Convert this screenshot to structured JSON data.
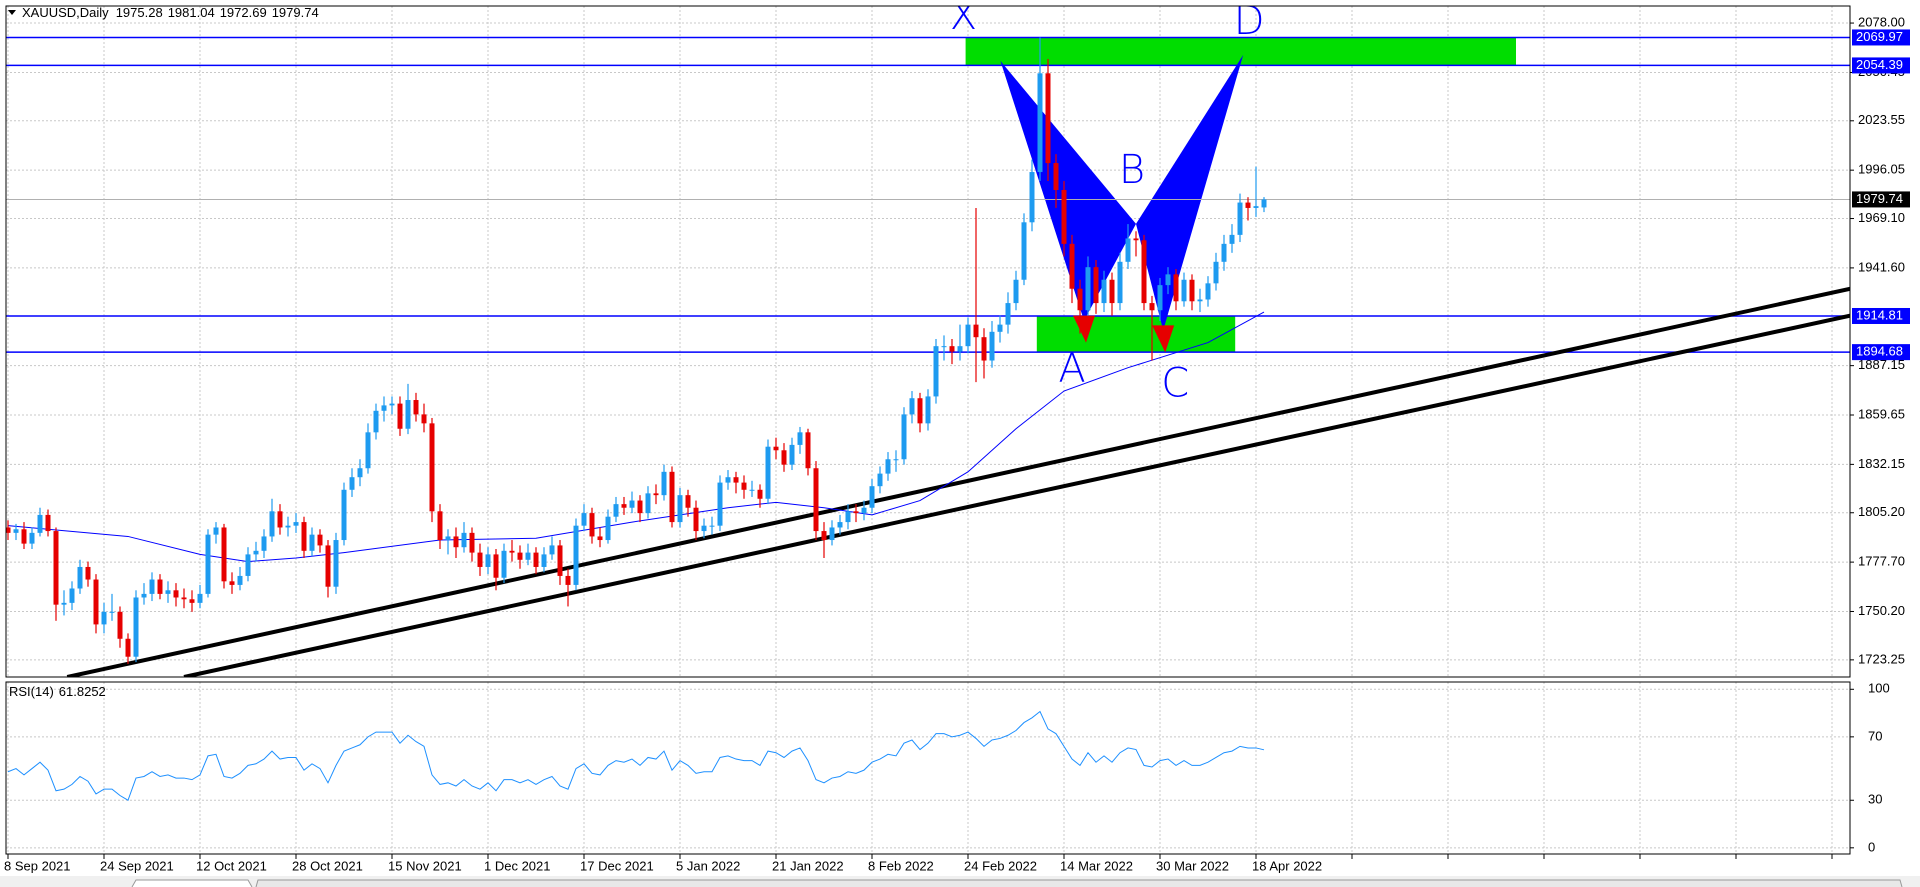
{
  "chart_data": {
    "type": "candlestick",
    "title": "XAUUSD,Daily",
    "categories": [
      "8 Sep 2021",
      null,
      null,
      null,
      null,
      null,
      null,
      null,
      null,
      null,
      null,
      null,
      "24 Sep 2021",
      null,
      null,
      null,
      null,
      null,
      null,
      null,
      null,
      null,
      null,
      null,
      "12 Oct 2021",
      null,
      null,
      null,
      null,
      null,
      null,
      null,
      null,
      null,
      null,
      null,
      "28 Oct 2021",
      null,
      null,
      null,
      null,
      null,
      null,
      null,
      null,
      null,
      null,
      null,
      "15 Nov 2021",
      null,
      null,
      null,
      null,
      null,
      null,
      null,
      null,
      null,
      null,
      null,
      "1 Dec 2021",
      null,
      null,
      null,
      null,
      null,
      null,
      null,
      null,
      null,
      null,
      null,
      "17 Dec 2021",
      null,
      null,
      null,
      null,
      null,
      null,
      null,
      null,
      null,
      null,
      null,
      "5 Jan 2022",
      null,
      null,
      null,
      null,
      null,
      null,
      null,
      null,
      null,
      null,
      null,
      "21 Jan 2022",
      null,
      null,
      null,
      null,
      null,
      null,
      null,
      null,
      null,
      null,
      null,
      "8 Feb 2022",
      null,
      null,
      null,
      null,
      null,
      null,
      null,
      null,
      null,
      null,
      null,
      "24 Feb 2022",
      null,
      null,
      null,
      null,
      null,
      null,
      null,
      null,
      null,
      null,
      null,
      "14 Mar 2022",
      null,
      null,
      null,
      null,
      null,
      null,
      null,
      null,
      null,
      null,
      null,
      "30 Mar 2022",
      null,
      null,
      null,
      null,
      null,
      null,
      null,
      null,
      null,
      null,
      null,
      "18 Apr 2022",
      null
    ],
    "ohlc": [
      [
        1797,
        1801,
        1790,
        1794
      ],
      [
        1794,
        1799,
        1790,
        1796
      ],
      [
        1796,
        1800,
        1785,
        1788
      ],
      [
        1788,
        1797,
        1785,
        1794
      ],
      [
        1794,
        1808,
        1792,
        1804
      ],
      [
        1804,
        1807,
        1792,
        1795
      ],
      [
        1795,
        1797,
        1745,
        1754
      ],
      [
        1754,
        1762,
        1748,
        1755
      ],
      [
        1755,
        1767,
        1751,
        1763
      ],
      [
        1763,
        1779,
        1760,
        1775
      ],
      [
        1775,
        1778,
        1764,
        1768
      ],
      [
        1768,
        1771,
        1738,
        1743
      ],
      [
        1743,
        1755,
        1738,
        1750
      ],
      [
        1750,
        1760,
        1745,
        1750
      ],
      [
        1750,
        1753,
        1730,
        1735
      ],
      [
        1735,
        1738,
        1721,
        1725
      ],
      [
        1725,
        1762,
        1722,
        1758
      ],
      [
        1758,
        1766,
        1754,
        1760
      ],
      [
        1760,
        1772,
        1756,
        1768
      ],
      [
        1768,
        1771,
        1757,
        1760
      ],
      [
        1760,
        1767,
        1755,
        1762
      ],
      [
        1762,
        1766,
        1753,
        1758
      ],
      [
        1758,
        1763,
        1752,
        1757
      ],
      [
        1757,
        1762,
        1750,
        1755
      ],
      [
        1755,
        1765,
        1752,
        1760
      ],
      [
        1760,
        1796,
        1758,
        1793
      ],
      [
        1793,
        1800,
        1788,
        1797
      ],
      [
        1797,
        1799,
        1763,
        1767
      ],
      [
        1767,
        1772,
        1760,
        1765
      ],
      [
        1765,
        1775,
        1762,
        1770
      ],
      [
        1770,
        1786,
        1767,
        1782
      ],
      [
        1782,
        1789,
        1778,
        1784
      ],
      [
        1784,
        1796,
        1780,
        1792
      ],
      [
        1792,
        1813,
        1789,
        1806
      ],
      [
        1806,
        1810,
        1793,
        1797
      ],
      [
        1797,
        1803,
        1792,
        1798
      ],
      [
        1798,
        1805,
        1794,
        1800
      ],
      [
        1800,
        1803,
        1780,
        1784
      ],
      [
        1784,
        1797,
        1781,
        1793
      ],
      [
        1793,
        1796,
        1783,
        1787
      ],
      [
        1787,
        1790,
        1758,
        1764
      ],
      [
        1764,
        1794,
        1760,
        1790
      ],
      [
        1790,
        1822,
        1787,
        1818
      ],
      [
        1818,
        1830,
        1814,
        1825
      ],
      [
        1825,
        1835,
        1820,
        1830
      ],
      [
        1830,
        1855,
        1827,
        1850
      ],
      [
        1850,
        1866,
        1846,
        1862
      ],
      [
        1862,
        1870,
        1856,
        1865
      ],
      [
        1865,
        1870,
        1860,
        1866
      ],
      [
        1866,
        1870,
        1848,
        1852
      ],
      [
        1852,
        1877,
        1849,
        1868
      ],
      [
        1868,
        1872,
        1856,
        1860
      ],
      [
        1860,
        1866,
        1850,
        1855
      ],
      [
        1855,
        1858,
        1800,
        1806
      ],
      [
        1806,
        1810,
        1785,
        1790
      ],
      [
        1790,
        1796,
        1782,
        1792
      ],
      [
        1792,
        1797,
        1780,
        1786
      ],
      [
        1786,
        1800,
        1783,
        1794
      ],
      [
        1794,
        1797,
        1778,
        1783
      ],
      [
        1783,
        1788,
        1770,
        1775
      ],
      [
        1775,
        1786,
        1771,
        1782
      ],
      [
        1782,
        1785,
        1762,
        1769
      ],
      [
        1769,
        1788,
        1766,
        1784
      ],
      [
        1784,
        1790,
        1778,
        1783
      ],
      [
        1783,
        1787,
        1774,
        1779
      ],
      [
        1779,
        1788,
        1776,
        1783
      ],
      [
        1783,
        1786,
        1771,
        1775
      ],
      [
        1775,
        1786,
        1772,
        1782
      ],
      [
        1782,
        1792,
        1779,
        1787
      ],
      [
        1787,
        1790,
        1765,
        1770
      ],
      [
        1770,
        1774,
        1753,
        1765
      ],
      [
        1765,
        1802,
        1762,
        1798
      ],
      [
        1798,
        1810,
        1795,
        1805
      ],
      [
        1805,
        1808,
        1788,
        1792
      ],
      [
        1792,
        1797,
        1786,
        1790
      ],
      [
        1790,
        1807,
        1788,
        1803
      ],
      [
        1803,
        1814,
        1800,
        1810
      ],
      [
        1810,
        1814,
        1804,
        1808
      ],
      [
        1808,
        1817,
        1805,
        1812
      ],
      [
        1812,
        1815,
        1800,
        1805
      ],
      [
        1805,
        1820,
        1802,
        1816
      ],
      [
        1816,
        1821,
        1810,
        1815
      ],
      [
        1815,
        1832,
        1812,
        1828
      ],
      [
        1828,
        1831,
        1797,
        1800
      ],
      [
        1800,
        1819,
        1797,
        1815
      ],
      [
        1815,
        1818,
        1803,
        1808
      ],
      [
        1808,
        1812,
        1790,
        1795
      ],
      [
        1795,
        1802,
        1791,
        1798
      ],
      [
        1798,
        1803,
        1793,
        1798
      ],
      [
        1798,
        1826,
        1795,
        1822
      ],
      [
        1822,
        1829,
        1818,
        1825
      ],
      [
        1825,
        1828,
        1816,
        1822
      ],
      [
        1822,
        1826,
        1813,
        1818
      ],
      [
        1818,
        1823,
        1814,
        1818
      ],
      [
        1818,
        1821,
        1808,
        1813
      ],
      [
        1813,
        1846,
        1810,
        1842
      ],
      [
        1842,
        1847,
        1835,
        1840
      ],
      [
        1840,
        1844,
        1828,
        1832
      ],
      [
        1832,
        1847,
        1829,
        1843
      ],
      [
        1843,
        1853,
        1838,
        1850
      ],
      [
        1850,
        1852,
        1826,
        1830
      ],
      [
        1830,
        1834,
        1790,
        1795
      ],
      [
        1795,
        1800,
        1780,
        1790
      ],
      [
        1790,
        1801,
        1787,
        1797
      ],
      [
        1797,
        1804,
        1793,
        1800
      ],
      [
        1800,
        1810,
        1796,
        1806
      ],
      [
        1806,
        1810,
        1800,
        1805
      ],
      [
        1805,
        1812,
        1801,
        1808
      ],
      [
        1808,
        1824,
        1805,
        1820
      ],
      [
        1820,
        1831,
        1816,
        1827
      ],
      [
        1827,
        1839,
        1823,
        1835
      ],
      [
        1835,
        1840,
        1828,
        1835
      ],
      [
        1835,
        1864,
        1832,
        1860
      ],
      [
        1860,
        1873,
        1855,
        1869
      ],
      [
        1869,
        1872,
        1850,
        1855
      ],
      [
        1855,
        1874,
        1851,
        1870
      ],
      [
        1870,
        1902,
        1866,
        1898
      ],
      [
        1898,
        1904,
        1890,
        1898
      ],
      [
        1898,
        1902,
        1888,
        1895
      ],
      [
        1895,
        1910,
        1890,
        1898
      ],
      [
        1898,
        1914,
        1894,
        1910
      ],
      [
        1910,
        1975,
        1878,
        1903
      ],
      [
        1903,
        1908,
        1880,
        1890
      ],
      [
        1890,
        1912,
        1886,
        1906
      ],
      [
        1906,
        1915,
        1900,
        1910
      ],
      [
        1910,
        1928,
        1905,
        1922
      ],
      [
        1922,
        1940,
        1918,
        1935
      ],
      [
        1935,
        1972,
        1932,
        1967
      ],
      [
        1967,
        2002,
        1962,
        1995
      ],
      [
        1995,
        2070,
        1990,
        2050
      ],
      [
        2050,
        2058,
        1990,
        2000
      ],
      [
        2000,
        2005,
        1975,
        1985
      ],
      [
        1985,
        1990,
        1948,
        1955
      ],
      [
        1955,
        1960,
        1922,
        1930
      ],
      [
        1930,
        1935,
        1905,
        1918
      ],
      [
        1918,
        1948,
        1912,
        1942
      ],
      [
        1942,
        1946,
        1916,
        1922
      ],
      [
        1922,
        1940,
        1917,
        1935
      ],
      [
        1935,
        1939,
        1915,
        1922
      ],
      [
        1922,
        1950,
        1918,
        1945
      ],
      [
        1945,
        1966,
        1941,
        1958
      ],
      [
        1958,
        1962,
        1948,
        1957
      ],
      [
        1957,
        1960,
        1918,
        1922
      ],
      [
        1922,
        1926,
        1890,
        1918
      ],
      [
        1918,
        1936,
        1912,
        1932
      ],
      [
        1932,
        1942,
        1927,
        1938
      ],
      [
        1938,
        1941,
        1918,
        1923
      ],
      [
        1923,
        1939,
        1920,
        1935
      ],
      [
        1935,
        1938,
        1918,
        1923
      ],
      [
        1923,
        1930,
        1917,
        1924
      ],
      [
        1924,
        1937,
        1920,
        1933
      ],
      [
        1933,
        1950,
        1929,
        1945
      ],
      [
        1945,
        1960,
        1940,
        1955
      ],
      [
        1955,
        1966,
        1950,
        1960
      ],
      [
        1960,
        1983,
        1956,
        1978
      ],
      [
        1978,
        1981,
        1968,
        1975
      ],
      [
        1975,
        1998,
        1970,
        1976
      ],
      [
        1975.28,
        1981.04,
        1972.69,
        1979.74
      ]
    ],
    "up_color": "#1e9bf0",
    "down_color": "#e60000",
    "ylim": [
      1713.7,
      2087.5
    ],
    "yticks": [
      {
        "value": 2078,
        "label": "2078.00"
      },
      2050.45,
      2023.55,
      1996.05,
      {
        "value": 1969.1,
        "label": "1969.10"
      },
      {
        "value": 1941.6,
        "label": "1941.60"
      },
      1887.15,
      1859.65,
      1832.15,
      {
        "value": 1805.2,
        "label": "1805.20"
      },
      {
        "value": 1777.7,
        "label": "1777.70"
      },
      {
        "value": 1750.2,
        "label": "1750.20"
      },
      1723.25
    ],
    "grid": true,
    "levels": [
      2069.97,
      2054.39,
      1914.81,
      1894.68
    ],
    "level_color": "#0000ff",
    "ma": {
      "color": "#0000ff",
      "x": [
        0,
        15,
        24,
        30,
        36,
        42,
        54,
        66,
        78,
        90,
        96,
        102,
        108,
        114,
        120,
        126,
        132,
        140,
        150,
        157
      ],
      "values": [
        1798,
        1792,
        1782,
        1778,
        1780,
        1783,
        1790,
        1791,
        1800,
        1808,
        1811,
        1808,
        1804,
        1812,
        1828,
        1852,
        1873,
        1886,
        1900,
        1917
      ]
    },
    "zones": [
      {
        "x": [
          119.7,
          188.5
        ],
        "y": [
          2054.39,
          2069.97
        ]
      },
      {
        "x": [
          128.6,
          153.4
        ],
        "y": [
          1894.68,
          1914.81
        ]
      }
    ],
    "zone_color": "#00dd00",
    "trendlines": [
      {
        "x": [
          7.4,
          230.9
        ],
        "y": [
          1713.7,
          1930.6
        ]
      },
      {
        "x": [
          22.0,
          230.9
        ],
        "y": [
          1713.7,
          1915.6
        ]
      }
    ],
    "pattern": {
      "color": "#0000ff",
      "labels": [
        "X",
        "A",
        "B",
        "C",
        "D"
      ],
      "x": [
        124.05,
        134.5,
        141.0,
        144.4,
        154.4
      ],
      "y": [
        2056.9,
        1912.2,
        1966.1,
        1906.8,
        2060.3
      ]
    },
    "rsi": {
      "title": "RSI(14)",
      "color": "#1e90ff",
      "ylim": [
        -3.9,
        104.6
      ],
      "yticks": [
        100,
        70,
        30,
        0
      ],
      "values": [
        48,
        50,
        46,
        50,
        54,
        49,
        36,
        37,
        40,
        45,
        42,
        34,
        37,
        37,
        33,
        30,
        44,
        45,
        48,
        45,
        46,
        44,
        44,
        43,
        46,
        58,
        59,
        45,
        44,
        47,
        52,
        53,
        56,
        61,
        56,
        57,
        57,
        49,
        53,
        50,
        41,
        52,
        61,
        63,
        65,
        70,
        73,
        73,
        73,
        66,
        71,
        67,
        64,
        46,
        40,
        41,
        39,
        43,
        39,
        37,
        41,
        36,
        43,
        43,
        41,
        43,
        40,
        43,
        45,
        39,
        37,
        50,
        53,
        47,
        46,
        52,
        55,
        54,
        56,
        52,
        57,
        56,
        61,
        49,
        55,
        52,
        47,
        48,
        48,
        57,
        58,
        56,
        55,
        55,
        52,
        61,
        60,
        57,
        61,
        63,
        55,
        43,
        41,
        44,
        45,
        48,
        47,
        49,
        54,
        56,
        59,
        58,
        66,
        68,
        62,
        66,
        72,
        72,
        70,
        71,
        73,
        69,
        64,
        68,
        69,
        71,
        74,
        79,
        82,
        86,
        75,
        72,
        64,
        56,
        52,
        60,
        54,
        58,
        54,
        60,
        63,
        62,
        52,
        51,
        55,
        56,
        52,
        55,
        52,
        52,
        54,
        57,
        60,
        61,
        64,
        63,
        63,
        61.8252
      ]
    }
  }
}
